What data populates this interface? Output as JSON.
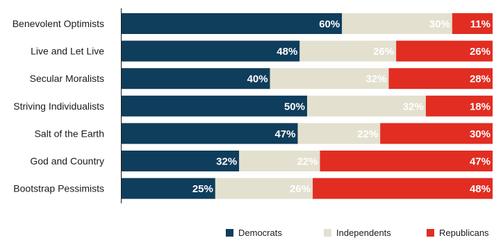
{
  "chart_data": {
    "type": "bar",
    "orientation": "horizontal",
    "stacked": true,
    "title": "",
    "xlabel": "",
    "ylabel": "",
    "categories": [
      "Benevolent Optimists",
      "Live and Let Live",
      "Secular Moralists",
      "Striving Individualists",
      "Salt of the Earth",
      "God and Country",
      "Bootstrap Pessimists"
    ],
    "series": [
      {
        "name": "Democrats",
        "color": "#0f3d5c",
        "label_color": "#ffffff",
        "values": [
          60,
          48,
          40,
          50,
          47,
          32,
          25
        ]
      },
      {
        "name": "Independents",
        "color": "#e3e0cf",
        "label_color": "#ffffff",
        "values": [
          30,
          26,
          32,
          32,
          22,
          22,
          26
        ]
      },
      {
        "name": "Republicans",
        "color": "#e12d22",
        "label_color": "#ffffff",
        "values": [
          11,
          26,
          28,
          18,
          30,
          47,
          48
        ]
      }
    ],
    "value_format": "percent",
    "grid": false,
    "legend_position": "bottom-right"
  }
}
